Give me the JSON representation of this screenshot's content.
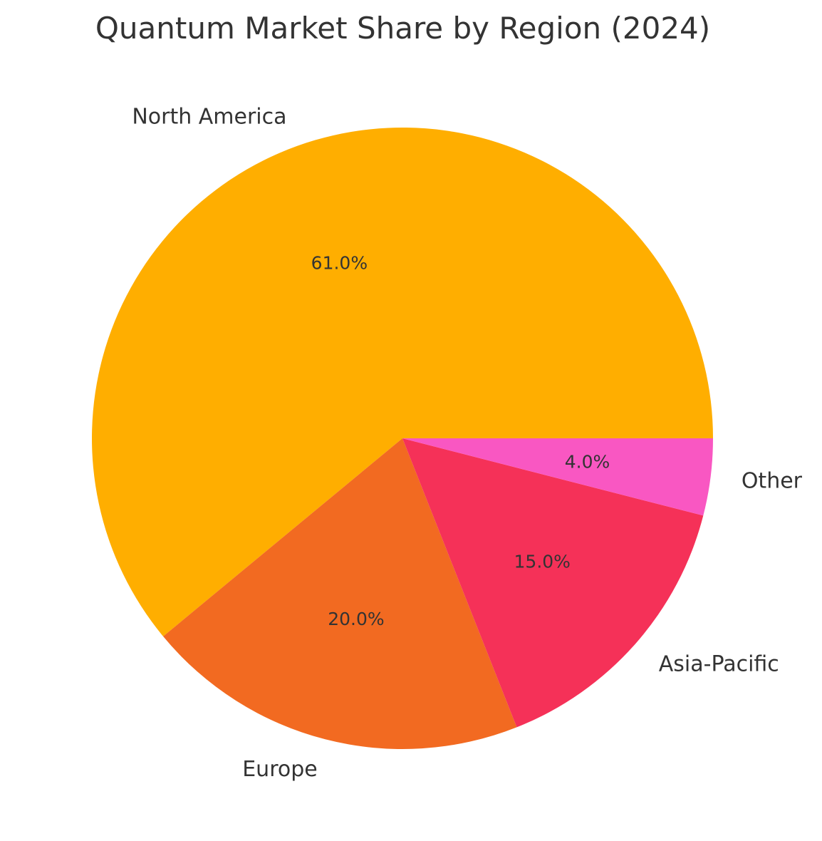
{
  "chart_data": {
    "type": "pie",
    "title": "Quantum Market Share by Region (2024)",
    "slices": [
      {
        "label": "North America",
        "value": 61.0,
        "pct_label": "61.0%",
        "color": "#FFAE00"
      },
      {
        "label": "Europe",
        "value": 20.0,
        "pct_label": "20.0%",
        "color": "#F26A21"
      },
      {
        "label": "Asia-Pacific",
        "value": 15.0,
        "pct_label": "15.0%",
        "color": "#F53158"
      },
      {
        "label": "Other",
        "value": 4.0,
        "pct_label": "4.0%",
        "color": "#F957C2"
      }
    ],
    "start_angle_deg": 0,
    "direction": "counterclockwise",
    "legend": "none"
  }
}
